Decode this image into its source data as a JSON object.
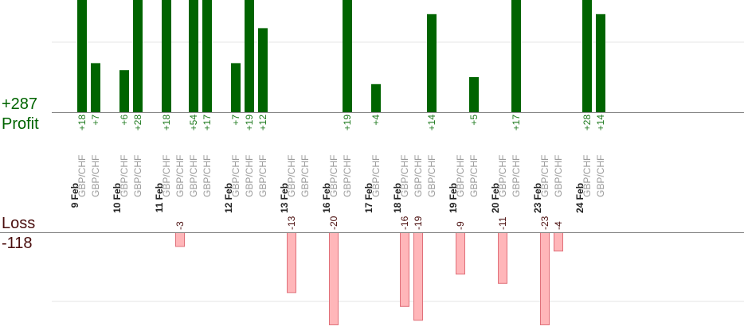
{
  "colors": {
    "profit": "#006400",
    "profit_text": "#1e7a1e",
    "loss_fill": "#ffb6b9",
    "loss_stroke": "#e0707a",
    "loss_label": "#4a0e0e",
    "axis": "#888888",
    "grid": "#e6e6e6",
    "pair_text": "#9a9a9a",
    "date_text": "#222222",
    "loss_value_text": "#4a0e0e"
  },
  "summary": {
    "profit_total": "+287",
    "profit_label": "Profit",
    "loss_label": "Loss",
    "loss_total": "-118"
  },
  "chart_data": {
    "type": "bar",
    "days": [
      {
        "date": "9 Feb",
        "trades": [
          {
            "pair": "GBP/CHF",
            "value": 18
          },
          {
            "pair": "GBP/CHF",
            "value": 7
          }
        ]
      },
      {
        "date": "10 Feb",
        "trades": [
          {
            "pair": "GBP/CHF",
            "value": 6
          },
          {
            "pair": "GBP/CHF",
            "value": 28
          }
        ]
      },
      {
        "date": "11 Feb",
        "trades": [
          {
            "pair": "GBP/CHF",
            "value": 18
          },
          {
            "pair": "GBP/CHF",
            "value": -3
          },
          {
            "pair": "GBP/CHF",
            "value": 54
          },
          {
            "pair": "GBP/CHF",
            "value": 17
          }
        ]
      },
      {
        "date": "12 Feb",
        "trades": [
          {
            "pair": "GBP/CHF",
            "value": 7
          },
          {
            "pair": "GBP/CHF",
            "value": 19
          },
          {
            "pair": "GBP/CHF",
            "value": 12
          }
        ]
      },
      {
        "date": "13 Feb",
        "trades": [
          {
            "pair": "GBP/CHF",
            "value": -13
          },
          {
            "pair": "GBP/CHF",
            "value": 0
          }
        ]
      },
      {
        "date": "16 Feb",
        "trades": [
          {
            "pair": "GBP/CHF",
            "value": -20
          },
          {
            "pair": "GBP/CHF",
            "value": 19
          }
        ]
      },
      {
        "date": "17 Feb",
        "trades": [
          {
            "pair": "GBP/CHF",
            "value": 4
          }
        ]
      },
      {
        "date": "18 Feb",
        "trades": [
          {
            "pair": "GBP/CHF",
            "value": -16
          },
          {
            "pair": "GBP/CHF",
            "value": -19
          },
          {
            "pair": "GBP/CHF",
            "value": 14
          }
        ]
      },
      {
        "date": "19 Feb",
        "trades": [
          {
            "pair": "GBP/CHF",
            "value": -9
          },
          {
            "pair": "GBP/CHF",
            "value": 5
          }
        ]
      },
      {
        "date": "20 Feb",
        "trades": [
          {
            "pair": "GBP/CHF",
            "value": -11
          },
          {
            "pair": "GBP/CHF",
            "value": 17
          }
        ]
      },
      {
        "date": "23 Feb",
        "trades": [
          {
            "pair": "GBP/CHF",
            "value": -23
          },
          {
            "pair": "GBP/CHF",
            "value": -4
          }
        ]
      },
      {
        "date": "24 Feb",
        "trades": [
          {
            "pair": "GBP/CHF",
            "value": 28
          },
          {
            "pair": "GBP/CHF",
            "value": 14
          }
        ]
      }
    ],
    "profit_gridlines": [
      10
    ],
    "loss_gridlines": [
      -15
    ],
    "grid": true,
    "legend": "none"
  }
}
